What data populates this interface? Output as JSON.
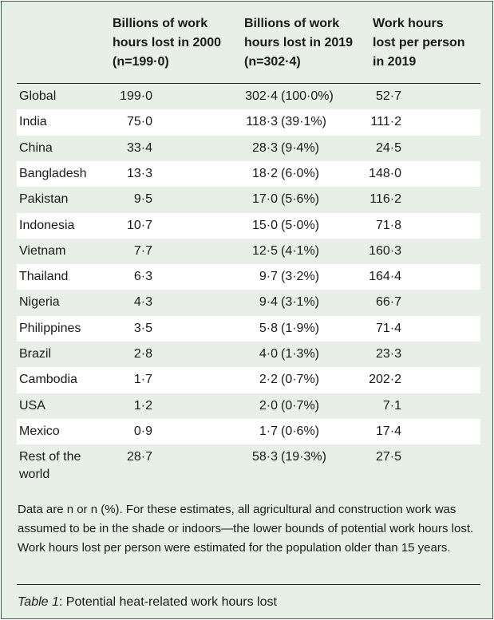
{
  "headers": [
    "",
    "Billions of work hours lost in 2000 (n=199·0)",
    "Billions of work hours lost in 2019 (n=302·4)",
    "Work hours lost per person in 2019"
  ],
  "header_lines": {
    "c2": [
      "Billions of work",
      "hours lost in 2000",
      "(n=199·0)"
    ],
    "c3": [
      "Billions of work",
      "hours lost in 2019",
      "(n=302·4)"
    ],
    "c4": [
      "Work hours",
      "lost per person",
      "in 2019"
    ]
  },
  "rows": [
    {
      "country": "Global",
      "y2000": "199·0",
      "y2019": "302·4",
      "pct": "(100·0%)",
      "per_person": "52·7"
    },
    {
      "country": "India",
      "y2000": "75·0",
      "y2019": "118·3",
      "pct": "(39·1%)",
      "per_person": "111·2"
    },
    {
      "country": "China",
      "y2000": "33·4",
      "y2019": "28·3",
      "pct": "(9·4%)",
      "per_person": "24·5"
    },
    {
      "country": "Bangladesh",
      "y2000": "13·3",
      "y2019": "18·2",
      "pct": "(6·0%)",
      "per_person": "148·0"
    },
    {
      "country": "Pakistan",
      "y2000": "9·5",
      "y2019": "17·0",
      "pct": "(5·6%)",
      "per_person": "116·2"
    },
    {
      "country": "Indonesia",
      "y2000": "10·7",
      "y2019": "15·0",
      "pct": "(5·0%)",
      "per_person": "71·8"
    },
    {
      "country": "Vietnam",
      "y2000": "7·7",
      "y2019": "12·5",
      "pct": "(4·1%)",
      "per_person": "160·3"
    },
    {
      "country": "Thailand",
      "y2000": "6·3",
      "y2019": "9·7",
      "pct": "(3·2%)",
      "per_person": "164·4"
    },
    {
      "country": "Nigeria",
      "y2000": "4·3",
      "y2019": "9·4",
      "pct": "(3·1%)",
      "per_person": "66·7"
    },
    {
      "country": "Philippines",
      "y2000": "3·5",
      "y2019": "5·8",
      "pct": "(1·9%)",
      "per_person": "71·4"
    },
    {
      "country": "Brazil",
      "y2000": "2·8",
      "y2019": "4·0",
      "pct": "(1·3%)",
      "per_person": "23·3"
    },
    {
      "country": "Cambodia",
      "y2000": "1·7",
      "y2019": "2·2",
      "pct": "(0·7%)",
      "per_person": "202·2"
    },
    {
      "country": "USA",
      "y2000": "1·2",
      "y2019": "2·0",
      "pct": "(0·7%)",
      "per_person": "7·1"
    },
    {
      "country": "Mexico",
      "y2000": "0·9",
      "y2019": "1·7",
      "pct": "(0·6%)",
      "per_person": "17·4"
    }
  ],
  "last_row": {
    "country_l1": "Rest of the",
    "country_l2": "world",
    "y2000": "28·7",
    "y2019": "58·3",
    "pct": "(19·3%)",
    "per_person": "27·5"
  },
  "footnote": "Data are n or n (%). For these estimates, all agricultural and construction work was assumed to be in the shade or indoors—the lower bounds of potential work hours lost. Work hours lost per person were estimated for the population older than 15 years.",
  "caption": {
    "label": "Table 1",
    "text": ": Potential heat-related work hours lost"
  },
  "colors": {
    "background": "#e7efe6",
    "border": "#2f6b47",
    "stripe": "#ffffff"
  }
}
